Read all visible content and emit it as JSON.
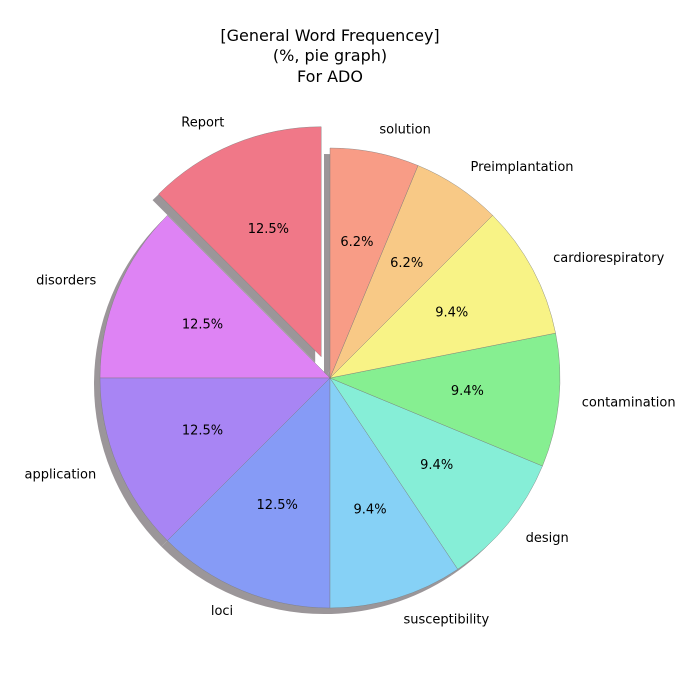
{
  "chart_data": {
    "type": "pie",
    "title_lines": [
      "[General Word Frequencey]",
      "(%, pie graph)",
      "For ADO"
    ],
    "slices": [
      {
        "label": "Report",
        "value": 12.5,
        "pct_label": "12.5%",
        "color": "#f07888",
        "exploded": true
      },
      {
        "label": "disorders",
        "value": 12.5,
        "pct_label": "12.5%",
        "color": "#de83f4",
        "exploded": false
      },
      {
        "label": "application",
        "value": 12.5,
        "pct_label": "12.5%",
        "color": "#a885f4",
        "exploded": false
      },
      {
        "label": "loci",
        "value": 12.5,
        "pct_label": "12.5%",
        "color": "#869bf6",
        "exploded": false
      },
      {
        "label": "susceptibility",
        "value": 9.375,
        "pct_label": "9.4%",
        "color": "#86d1f6",
        "exploded": false
      },
      {
        "label": "design",
        "value": 9.375,
        "pct_label": "9.4%",
        "color": "#86eed7",
        "exploded": false
      },
      {
        "label": "contamination",
        "value": 9.375,
        "pct_label": "9.4%",
        "color": "#86ef91",
        "exploded": false
      },
      {
        "label": "cardiorespiratory",
        "value": 9.375,
        "pct_label": "9.4%",
        "color": "#f8f386",
        "exploded": false
      },
      {
        "label": "Preimplantation",
        "value": 6.25,
        "pct_label": "6.2%",
        "color": "#f8c986",
        "exploded": false
      },
      {
        "label": "solution",
        "value": 6.25,
        "pct_label": "6.2%",
        "color": "#f89c86",
        "exploded": false
      }
    ],
    "start_angle_deg": 90,
    "direction": "counterclockwise",
    "shadow": true
  }
}
